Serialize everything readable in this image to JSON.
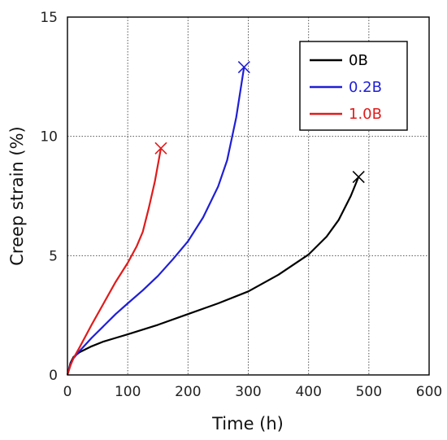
{
  "chart_data": {
    "type": "line",
    "xlabel": "Time (h)",
    "ylabel": "Creep strain (%)",
    "xlim": [
      0,
      600
    ],
    "ylim": [
      0,
      15
    ],
    "xticks": [
      "0",
      "100",
      "200",
      "300",
      "400",
      "500",
      "600"
    ],
    "yticks": [
      "0",
      "5",
      "10",
      "15"
    ],
    "grid": "dotted",
    "legend_position": "top-right",
    "series": [
      {
        "name": "0B",
        "color": "#000000",
        "end_marker": "x",
        "points": [
          [
            0,
            0
          ],
          [
            5,
            0.5
          ],
          [
            10,
            0.75
          ],
          [
            20,
            0.95
          ],
          [
            40,
            1.2
          ],
          [
            60,
            1.4
          ],
          [
            80,
            1.55
          ],
          [
            100,
            1.7
          ],
          [
            150,
            2.1
          ],
          [
            200,
            2.55
          ],
          [
            250,
            3.0
          ],
          [
            300,
            3.5
          ],
          [
            350,
            4.2
          ],
          [
            400,
            5.05
          ],
          [
            430,
            5.8
          ],
          [
            450,
            6.5
          ],
          [
            470,
            7.5
          ],
          [
            483,
            8.3
          ]
        ]
      },
      {
        "name": "0.2B",
        "color": "#1f1fd6",
        "end_marker": "x",
        "points": [
          [
            0,
            0
          ],
          [
            5,
            0.45
          ],
          [
            10,
            0.7
          ],
          [
            20,
            1.0
          ],
          [
            40,
            1.55
          ],
          [
            60,
            2.05
          ],
          [
            80,
            2.55
          ],
          [
            100,
            3.0
          ],
          [
            125,
            3.55
          ],
          [
            150,
            4.15
          ],
          [
            175,
            4.85
          ],
          [
            200,
            5.6
          ],
          [
            225,
            6.6
          ],
          [
            250,
            7.9
          ],
          [
            265,
            9.0
          ],
          [
            280,
            10.8
          ],
          [
            293,
            12.9
          ]
        ]
      },
      {
        "name": "1.0B",
        "color": "#e01b1b",
        "end_marker": "x",
        "points": [
          [
            0,
            0
          ],
          [
            5,
            0.4
          ],
          [
            10,
            0.7
          ],
          [
            20,
            1.15
          ],
          [
            40,
            2.1
          ],
          [
            60,
            3.0
          ],
          [
            80,
            3.9
          ],
          [
            100,
            4.7
          ],
          [
            115,
            5.4
          ],
          [
            125,
            6.0
          ],
          [
            135,
            7.0
          ],
          [
            145,
            8.1
          ],
          [
            155,
            9.5
          ]
        ]
      }
    ]
  }
}
